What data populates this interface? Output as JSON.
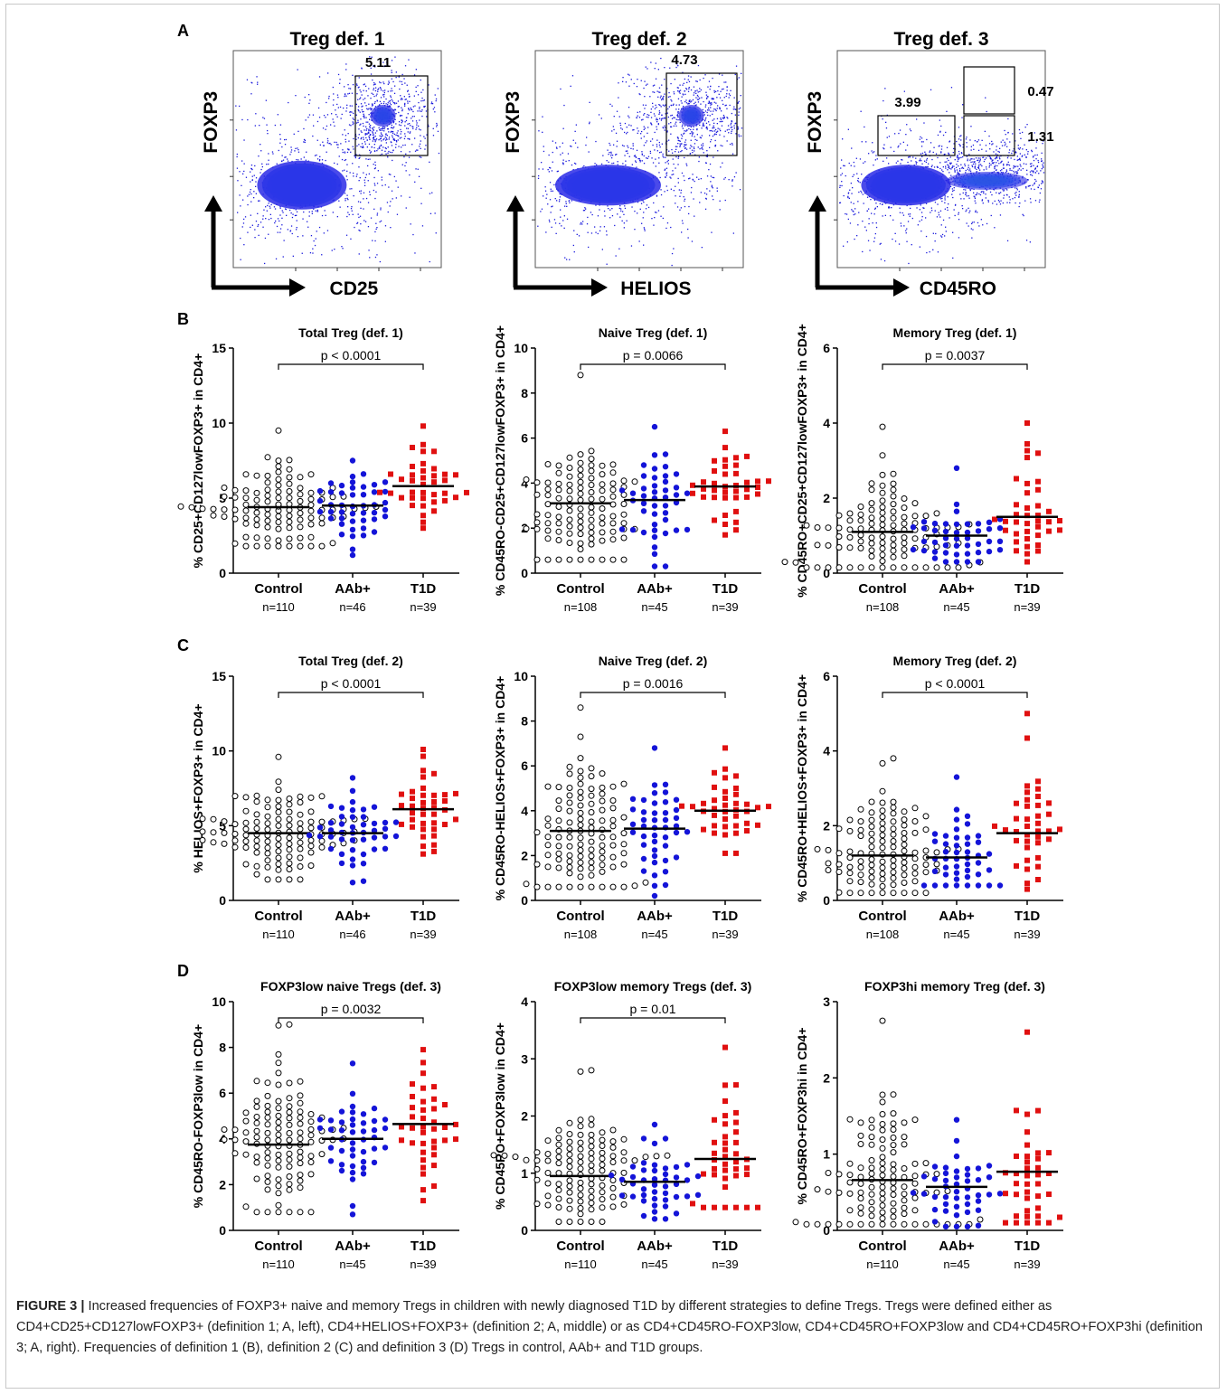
{
  "panel_letters": [
    "A",
    "B",
    "C",
    "D"
  ],
  "colors": {
    "control": "#000000",
    "aab": "#1414d8",
    "t1d": "#e01010",
    "flow_low": "#1a1adc",
    "flow_high": "#e81010"
  },
  "flow_plots": [
    {
      "title": "Treg def. 1",
      "ylabel": "FOXP3",
      "xlabel": "CD25",
      "gate_values": [
        "5.11"
      ]
    },
    {
      "title": "Treg def. 2",
      "ylabel": "FOXP3",
      "xlabel": "HELIOS",
      "gate_values": [
        "4.73"
      ]
    },
    {
      "title": "Treg def. 3",
      "ylabel": "FOXP3",
      "xlabel": "CD45RO",
      "gate_values": [
        "3.99",
        "0.47",
        "1.31"
      ]
    }
  ],
  "chart_data": [
    {
      "type": "scatter",
      "panel": "B",
      "title": "Total Treg (def. 1)",
      "ylabel": "% CD25+CD127lowFOXP3+ in CD4+",
      "ylim": [
        0,
        15
      ],
      "yticks": [
        0,
        5,
        10,
        15
      ],
      "p_value": "p < 0.0001",
      "p_bracket": [
        "Control",
        "T1D"
      ],
      "categories": [
        "Control",
        "AAb+",
        "T1D"
      ],
      "n_labels": [
        "n=110",
        "n=46",
        "n=39"
      ],
      "medians": [
        4.4,
        4.5,
        5.8
      ],
      "ranges": [
        [
          1.8,
          9.5
        ],
        [
          1.2,
          7.5
        ],
        [
          3.0,
          9.8
        ]
      ]
    },
    {
      "type": "scatter",
      "panel": "B",
      "title": "Naive Treg (def. 1)",
      "ylabel": "% CD45RO-CD25+CD127lowFOXP3+ in CD4+",
      "ylim": [
        0,
        10
      ],
      "yticks": [
        0,
        2,
        4,
        6,
        8,
        10
      ],
      "p_value": "p = 0.0066",
      "p_bracket": [
        "Control",
        "T1D"
      ],
      "categories": [
        "Control",
        "AAb+",
        "T1D"
      ],
      "n_labels": [
        "n=108",
        "n=45",
        "n=39"
      ],
      "medians": [
        3.1,
        3.25,
        3.85
      ],
      "ranges": [
        [
          0.6,
          8.8
        ],
        [
          0.3,
          6.5
        ],
        [
          1.7,
          6.3
        ]
      ]
    },
    {
      "type": "scatter",
      "panel": "B",
      "title": "Memory Treg (def. 1)",
      "ylabel": "% CD45RO+CD25+CD127lowFOXP3+ in CD4+",
      "ylim": [
        0,
        6
      ],
      "yticks": [
        0,
        2,
        4,
        6
      ],
      "p_value": "p = 0.0037",
      "p_bracket": [
        "Control",
        "T1D"
      ],
      "categories": [
        "Control",
        "AAb+",
        "T1D"
      ],
      "n_labels": [
        "n=108",
        "n=45",
        "n=39"
      ],
      "medians": [
        1.1,
        1.0,
        1.5
      ],
      "ranges": [
        [
          0.15,
          3.9
        ],
        [
          0.3,
          2.8
        ],
        [
          0.3,
          4.0
        ]
      ]
    },
    {
      "type": "scatter",
      "panel": "C",
      "title": "Total Treg (def. 2)",
      "ylabel": "% HELIOS+FOXP3+ in CD4+",
      "ylim": [
        0,
        15
      ],
      "yticks": [
        0,
        5,
        10,
        15
      ],
      "p_value": "p < 0.0001",
      "p_bracket": [
        "Control",
        "T1D"
      ],
      "categories": [
        "Control",
        "AAb+",
        "T1D"
      ],
      "n_labels": [
        "n=110",
        "n=46",
        "n=39"
      ],
      "medians": [
        4.5,
        4.5,
        6.1
      ],
      "ranges": [
        [
          1.4,
          9.6
        ],
        [
          1.2,
          8.2
        ],
        [
          3.1,
          10.1
        ]
      ]
    },
    {
      "type": "scatter",
      "panel": "C",
      "title": "Naive Treg (def. 2)",
      "ylabel": "% CD45RO-HELIOS+FOXP3+ in CD4+",
      "ylim": [
        0,
        10
      ],
      "yticks": [
        0,
        2,
        4,
        6,
        8,
        10
      ],
      "p_value": "p = 0.0016",
      "p_bracket": [
        "Control",
        "T1D"
      ],
      "categories": [
        "Control",
        "AAb+",
        "T1D"
      ],
      "n_labels": [
        "n=108",
        "n=45",
        "n=39"
      ],
      "medians": [
        3.1,
        3.2,
        4.0
      ],
      "ranges": [
        [
          0.6,
          8.6
        ],
        [
          0.2,
          6.8
        ],
        [
          2.1,
          6.8
        ]
      ]
    },
    {
      "type": "scatter",
      "panel": "C",
      "title": "Memory Treg (def. 2)",
      "ylabel": "% CD45RO+HELIOS+FOXP3+ in CD4+",
      "ylim": [
        0,
        6
      ],
      "yticks": [
        0,
        2,
        4,
        6
      ],
      "p_value": "p < 0.0001",
      "p_bracket": [
        "Control",
        "T1D"
      ],
      "categories": [
        "Control",
        "AAb+",
        "T1D"
      ],
      "n_labels": [
        "n=108",
        "n=45",
        "n=39"
      ],
      "medians": [
        1.2,
        1.15,
        1.8
      ],
      "ranges": [
        [
          0.2,
          3.8
        ],
        [
          0.4,
          3.3
        ],
        [
          0.3,
          5.0
        ]
      ]
    },
    {
      "type": "scatter",
      "panel": "D",
      "title": "FOXP3low naive Tregs (def. 3)",
      "ylabel": "% CD45RO-FOXP3low in CD4+",
      "ylim": [
        0,
        10
      ],
      "yticks": [
        0,
        2,
        4,
        6,
        8,
        10
      ],
      "p_value": "p = 0.0032",
      "p_bracket": [
        "Control",
        "T1D"
      ],
      "categories": [
        "Control",
        "AAb+",
        "T1D"
      ],
      "n_labels": [
        "n=110",
        "n=45",
        "n=39"
      ],
      "medians": [
        3.75,
        4.0,
        4.65
      ],
      "ranges": [
        [
          0.8,
          9.0
        ],
        [
          0.7,
          7.3
        ],
        [
          1.3,
          7.9
        ]
      ]
    },
    {
      "type": "scatter",
      "panel": "D",
      "title": "FOXP3low memory Tregs (def. 3)",
      "ylabel": "% CD45RO+FOXP3low in CD4+",
      "ylim": [
        0,
        4
      ],
      "yticks": [
        0,
        1,
        2,
        3,
        4
      ],
      "p_value": "p = 0.01",
      "p_bracket": [
        "Control",
        "T1D"
      ],
      "categories": [
        "Control",
        "AAb+",
        "T1D"
      ],
      "n_labels": [
        "n=110",
        "n=45",
        "n=39"
      ],
      "medians": [
        0.95,
        0.85,
        1.25
      ],
      "ranges": [
        [
          0.15,
          2.8
        ],
        [
          0.2,
          1.85
        ],
        [
          0.4,
          3.2
        ]
      ]
    },
    {
      "type": "scatter",
      "panel": "D",
      "title": "FOXP3hi memory Treg (def. 3)",
      "ylabel": "% CD45RO+FOXP3hi in CD4+",
      "ylim": [
        0,
        3
      ],
      "yticks": [
        0,
        1,
        2,
        3
      ],
      "p_value": "",
      "p_bracket": [],
      "categories": [
        "Control",
        "AAb+",
        "T1D"
      ],
      "n_labels": [
        "n=110",
        "n=45",
        "n=39"
      ],
      "medians": [
        0.66,
        0.57,
        0.77
      ],
      "ranges": [
        [
          0.08,
          2.75
        ],
        [
          0.05,
          1.45
        ],
        [
          0.1,
          2.6
        ]
      ]
    }
  ],
  "caption": {
    "label": "FIGURE 3 |",
    "text": "Increased frequencies of FOXP3+ naive and memory Tregs in children with newly diagnosed T1D by different strategies to define Tregs. Tregs were defined either as CD4+CD25+CD127lowFOXP3+ (definition 1; A, left), CD4+HELIOS+FOXP3+ (definition 2; A, middle) or as CD4+CD45RO-FOXP3low, CD4+CD45RO+FOXP3low and CD4+CD45RO+FOXP3hi (definition 3; A, right). Frequencies of definition 1 (B), definition 2 (C) and definition 3 (D) Tregs in control, AAb+ and T1D groups."
  }
}
